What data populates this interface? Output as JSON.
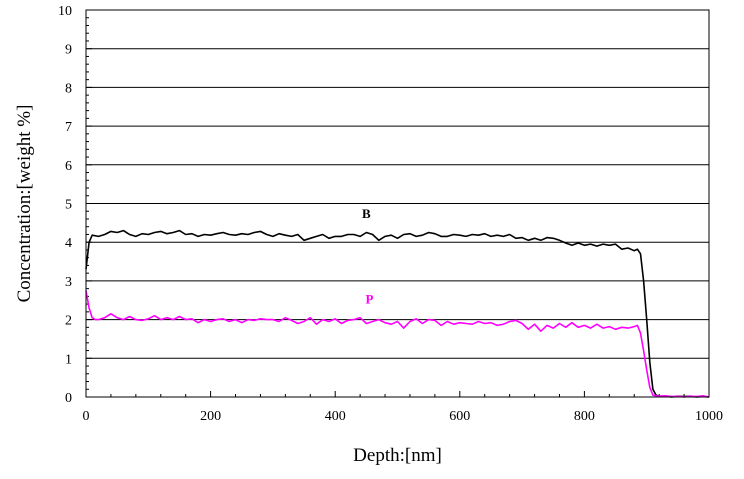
{
  "chart_data": {
    "type": "line",
    "title": "",
    "xlabel": "Depth:[nm]",
    "ylabel": "Concentration:[weight %]",
    "xlim": [
      0,
      1000
    ],
    "ylim": [
      0,
      10
    ],
    "x_ticks": [
      "0",
      "200",
      "400",
      "600",
      "800",
      "1000"
    ],
    "y_ticks": [
      "0",
      "1",
      "2",
      "3",
      "4",
      "5",
      "6",
      "7",
      "8",
      "9",
      "10"
    ],
    "grid": "horizontal",
    "legend": "none",
    "series": [
      {
        "name": "B",
        "color": "#000000",
        "x": [
          0,
          5,
          10,
          20,
          30,
          40,
          50,
          60,
          70,
          80,
          90,
          100,
          110,
          120,
          130,
          140,
          150,
          160,
          170,
          180,
          190,
          200,
          210,
          220,
          230,
          240,
          250,
          260,
          270,
          280,
          290,
          300,
          310,
          320,
          330,
          340,
          350,
          360,
          370,
          380,
          390,
          400,
          410,
          420,
          430,
          440,
          450,
          460,
          470,
          480,
          490,
          500,
          510,
          520,
          530,
          540,
          550,
          560,
          570,
          580,
          590,
          600,
          610,
          620,
          630,
          640,
          650,
          660,
          670,
          680,
          690,
          700,
          710,
          720,
          730,
          740,
          750,
          760,
          770,
          780,
          790,
          800,
          810,
          820,
          830,
          840,
          850,
          860,
          870,
          880,
          885,
          890,
          895,
          900,
          905,
          910,
          915,
          920,
          930,
          940,
          950,
          960,
          970,
          980,
          990,
          1000
        ],
        "values": [
          3.3,
          4.0,
          4.18,
          4.15,
          4.2,
          4.28,
          4.25,
          4.3,
          4.2,
          4.15,
          4.22,
          4.2,
          4.25,
          4.28,
          4.22,
          4.25,
          4.3,
          4.2,
          4.22,
          4.15,
          4.2,
          4.18,
          4.22,
          4.25,
          4.2,
          4.18,
          4.22,
          4.2,
          4.25,
          4.28,
          4.2,
          4.15,
          4.22,
          4.18,
          4.15,
          4.2,
          4.05,
          4.1,
          4.15,
          4.2,
          4.1,
          4.15,
          4.15,
          4.2,
          4.2,
          4.15,
          4.25,
          4.2,
          4.05,
          4.15,
          4.18,
          4.1,
          4.2,
          4.22,
          4.15,
          4.18,
          4.25,
          4.22,
          4.15,
          4.15,
          4.2,
          4.18,
          4.15,
          4.2,
          4.18,
          4.22,
          4.15,
          4.18,
          4.15,
          4.2,
          4.1,
          4.12,
          4.05,
          4.1,
          4.05,
          4.12,
          4.1,
          4.05,
          3.98,
          3.92,
          3.98,
          3.92,
          3.95,
          3.9,
          3.95,
          3.92,
          3.95,
          3.82,
          3.85,
          3.78,
          3.82,
          3.7,
          3.0,
          2.0,
          0.9,
          0.2,
          0.05,
          0.02,
          0.02,
          0.0,
          0.02,
          0.01,
          0.02,
          0.0,
          0.01,
          0.0
        ]
      },
      {
        "name": "P",
        "color": "#ff00ff",
        "x": [
          0,
          5,
          10,
          15,
          20,
          30,
          40,
          50,
          60,
          70,
          80,
          90,
          100,
          110,
          120,
          130,
          140,
          150,
          160,
          170,
          180,
          190,
          200,
          210,
          220,
          230,
          240,
          250,
          260,
          270,
          280,
          290,
          300,
          310,
          320,
          330,
          340,
          350,
          360,
          370,
          380,
          390,
          400,
          410,
          420,
          430,
          440,
          450,
          460,
          470,
          480,
          490,
          500,
          510,
          520,
          530,
          540,
          550,
          560,
          570,
          580,
          590,
          600,
          610,
          620,
          630,
          640,
          650,
          660,
          670,
          680,
          690,
          700,
          710,
          720,
          730,
          740,
          750,
          760,
          770,
          780,
          790,
          800,
          810,
          820,
          830,
          840,
          850,
          860,
          870,
          880,
          885,
          890,
          895,
          900,
          905,
          910,
          915,
          920,
          930,
          940,
          950,
          960,
          970,
          980,
          990,
          1000
        ],
        "values": [
          2.75,
          2.3,
          2.05,
          2.0,
          2.0,
          2.05,
          2.15,
          2.05,
          2.0,
          2.08,
          2.0,
          1.98,
          2.02,
          2.1,
          2.0,
          2.05,
          2.0,
          2.08,
          2.0,
          2.02,
          1.92,
          2.0,
          1.95,
          2.0,
          2.02,
          1.95,
          2.0,
          1.92,
          2.0,
          1.98,
          2.02,
          2.0,
          2.0,
          1.95,
          2.05,
          1.98,
          1.9,
          1.95,
          2.05,
          1.88,
          2.0,
          1.95,
          2.02,
          1.9,
          1.98,
          2.0,
          2.05,
          1.9,
          1.95,
          2.0,
          1.92,
          1.88,
          1.95,
          1.78,
          1.95,
          2.02,
          1.9,
          2.0,
          1.98,
          1.85,
          1.95,
          1.88,
          1.92,
          1.9,
          1.88,
          1.95,
          1.9,
          1.92,
          1.85,
          1.88,
          1.95,
          1.98,
          1.9,
          1.75,
          1.88,
          1.7,
          1.85,
          1.78,
          1.9,
          1.8,
          1.92,
          1.8,
          1.85,
          1.78,
          1.88,
          1.78,
          1.82,
          1.75,
          1.8,
          1.78,
          1.82,
          1.85,
          1.65,
          1.2,
          0.7,
          0.25,
          0.05,
          0.03,
          0.02,
          0.03,
          0.01,
          0.02,
          0.0,
          0.02,
          0.01,
          0.03,
          0.0
        ]
      }
    ],
    "annotations": [
      {
        "text": "B",
        "x": 450,
        "y": 4.62,
        "color": "#000000"
      },
      {
        "text": "P",
        "x": 455,
        "y": 2.42,
        "color": "#ff00ff"
      }
    ]
  }
}
